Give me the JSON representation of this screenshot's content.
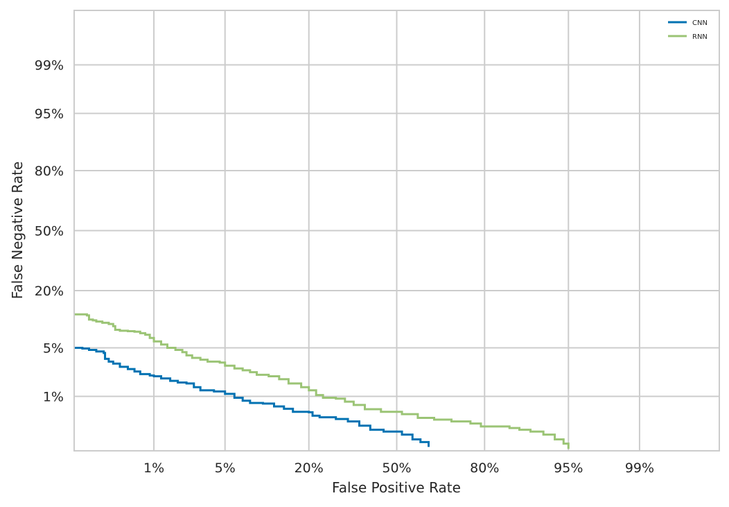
{
  "chart_data": {
    "type": "line",
    "title": "",
    "xlabel": "False Positive Rate",
    "ylabel": "False Negative Rate",
    "x_scale": "probit",
    "y_scale": "probit",
    "xlim": [
      0.001,
      0.999
    ],
    "ylim": [
      0.001,
      0.999
    ],
    "x_ticks": [
      0.01,
      0.05,
      0.2,
      0.5,
      0.8,
      0.95,
      0.99
    ],
    "x_tick_labels": [
      "1%",
      "5%",
      "20%",
      "50%",
      "80%",
      "95%",
      "99%"
    ],
    "y_ticks": [
      0.01,
      0.05,
      0.2,
      0.5,
      0.8,
      0.95,
      0.99
    ],
    "y_tick_labels": [
      "1%",
      "5%",
      "20%",
      "50%",
      "80%",
      "95%",
      "99%"
    ],
    "grid": true,
    "legend_position": "top-right",
    "colors": {
      "cnn": "#0072b2",
      "rnn": "#9bc475",
      "grid": "#cccccc",
      "frame": "#cccccc"
    },
    "series": [
      {
        "name": "CNN",
        "points": [
          [
            0.001,
            0.05
          ],
          [
            0.0013,
            0.049
          ],
          [
            0.0016,
            0.047
          ],
          [
            0.002,
            0.045
          ],
          [
            0.0025,
            0.043
          ],
          [
            0.0026,
            0.036
          ],
          [
            0.0029,
            0.033
          ],
          [
            0.0033,
            0.031
          ],
          [
            0.004,
            0.028
          ],
          [
            0.005,
            0.026
          ],
          [
            0.006,
            0.024
          ],
          [
            0.007,
            0.022
          ],
          [
            0.009,
            0.021
          ],
          [
            0.01,
            0.0205
          ],
          [
            0.012,
            0.019
          ],
          [
            0.015,
            0.0175
          ],
          [
            0.018,
            0.0165
          ],
          [
            0.022,
            0.016
          ],
          [
            0.026,
            0.014
          ],
          [
            0.03,
            0.0125
          ],
          [
            0.04,
            0.012
          ],
          [
            0.05,
            0.011
          ],
          [
            0.06,
            0.0095
          ],
          [
            0.07,
            0.0085
          ],
          [
            0.08,
            0.0078
          ],
          [
            0.1,
            0.0076
          ],
          [
            0.12,
            0.0068
          ],
          [
            0.14,
            0.0062
          ],
          [
            0.16,
            0.0055
          ],
          [
            0.2,
            0.0054
          ],
          [
            0.21,
            0.0047
          ],
          [
            0.23,
            0.0044
          ],
          [
            0.28,
            0.0041
          ],
          [
            0.32,
            0.0037
          ],
          [
            0.36,
            0.0031
          ],
          [
            0.4,
            0.0026
          ],
          [
            0.45,
            0.0024
          ],
          [
            0.52,
            0.0021
          ],
          [
            0.56,
            0.0017
          ],
          [
            0.59,
            0.0015
          ],
          [
            0.62,
            0.0012
          ]
        ]
      },
      {
        "name": "RNN",
        "points": [
          [
            0.001,
            0.12
          ],
          [
            0.0015,
            0.117
          ],
          [
            0.0016,
            0.106
          ],
          [
            0.0018,
            0.104
          ],
          [
            0.002,
            0.101
          ],
          [
            0.0024,
            0.098
          ],
          [
            0.0029,
            0.095
          ],
          [
            0.0033,
            0.09
          ],
          [
            0.0035,
            0.082
          ],
          [
            0.004,
            0.08
          ],
          [
            0.005,
            0.079
          ],
          [
            0.006,
            0.078
          ],
          [
            0.007,
            0.075
          ],
          [
            0.008,
            0.072
          ],
          [
            0.009,
            0.066
          ],
          [
            0.01,
            0.06
          ],
          [
            0.012,
            0.055
          ],
          [
            0.014,
            0.05
          ],
          [
            0.017,
            0.047
          ],
          [
            0.02,
            0.044
          ],
          [
            0.022,
            0.04
          ],
          [
            0.025,
            0.037
          ],
          [
            0.03,
            0.035
          ],
          [
            0.035,
            0.033
          ],
          [
            0.045,
            0.032
          ],
          [
            0.05,
            0.029
          ],
          [
            0.06,
            0.0265
          ],
          [
            0.07,
            0.025
          ],
          [
            0.08,
            0.0235
          ],
          [
            0.09,
            0.0215
          ],
          [
            0.11,
            0.0205
          ],
          [
            0.13,
            0.0185
          ],
          [
            0.15,
            0.016
          ],
          [
            0.18,
            0.014
          ],
          [
            0.2,
            0.0125
          ],
          [
            0.22,
            0.0105
          ],
          [
            0.24,
            0.0095
          ],
          [
            0.28,
            0.0092
          ],
          [
            0.31,
            0.0082
          ],
          [
            0.34,
            0.0072
          ],
          [
            0.38,
            0.0061
          ],
          [
            0.44,
            0.0055
          ],
          [
            0.52,
            0.005
          ],
          [
            0.58,
            0.0043
          ],
          [
            0.64,
            0.004
          ],
          [
            0.7,
            0.0037
          ],
          [
            0.76,
            0.0034
          ],
          [
            0.79,
            0.003
          ],
          [
            0.84,
            0.003
          ],
          [
            0.86,
            0.0028
          ],
          [
            0.88,
            0.0026
          ],
          [
            0.9,
            0.0024
          ],
          [
            0.92,
            0.0021
          ],
          [
            0.935,
            0.0017
          ],
          [
            0.945,
            0.0014
          ],
          [
            0.95,
            0.0011
          ]
        ]
      }
    ]
  }
}
